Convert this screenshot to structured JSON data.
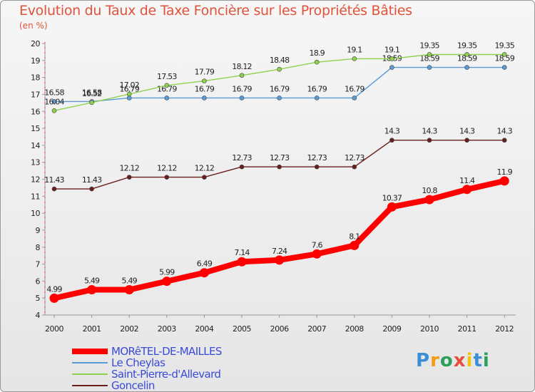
{
  "title": "Evolution du Taux de Taxe Foncière sur les Propriétés Bâties",
  "unit": "(en %)",
  "logo": {
    "text": "Proxiti",
    "letters": [
      {
        "ch": "P",
        "color": "#3a8fd6"
      },
      {
        "ch": "r",
        "color": "#f39c12"
      },
      {
        "ch": "o",
        "color": "#2ca05a"
      },
      {
        "ch": "x",
        "color": "#e74c3c"
      },
      {
        "ch": "i",
        "color": "#f1c40f"
      },
      {
        "ch": "t",
        "color": "#3a8fd6"
      },
      {
        "ch": "i",
        "color": "#2ca05a"
      }
    ]
  },
  "chart_data": {
    "type": "line",
    "x": [
      "2000",
      "2001",
      "2002",
      "2003",
      "2004",
      "2005",
      "2006",
      "2007",
      "2008",
      "2009",
      "2010",
      "2011",
      "2012"
    ],
    "ylim": [
      4,
      20
    ],
    "yticks": [
      4,
      5,
      6,
      7,
      8,
      9,
      10,
      11,
      12,
      13,
      14,
      15,
      16,
      17,
      18,
      19,
      20
    ],
    "grid": false,
    "legend_position": "bottom-left",
    "series": [
      {
        "name": "Goncelin",
        "color": "#6b1e1e",
        "labels": [
          "11.43",
          "11.43",
          "12.12",
          "12.12",
          "12.12",
          "12.73",
          "12.73",
          "12.73",
          "12.73",
          "14.3",
          "14.3",
          "14.3",
          "14.3"
        ],
        "values": [
          11.43,
          11.43,
          12.12,
          12.12,
          12.12,
          12.73,
          12.73,
          12.73,
          12.73,
          14.3,
          14.3,
          14.3,
          14.3
        ]
      },
      {
        "name": "Le Cheylas",
        "color": "#5b9bd5",
        "labels": [
          "16.58",
          "16.58",
          "16.79",
          "16.79",
          "16.79",
          "16.79",
          "16.79",
          "16.79",
          "16.79",
          "18.59",
          "18.59",
          "18.59",
          "18.59"
        ],
        "values": [
          16.58,
          16.58,
          16.79,
          16.79,
          16.79,
          16.79,
          16.79,
          16.79,
          16.79,
          18.59,
          18.59,
          18.59,
          18.59
        ]
      },
      {
        "name": "Saint-Pierre-d'Allevard",
        "color": "#8fd14f",
        "labels": [
          "16.04",
          "16.52",
          "17.02",
          "17.53",
          "17.79",
          "18.12",
          "18.48",
          "18.9",
          "19.1",
          "19.1",
          "19.35",
          "19.35",
          "19.35"
        ],
        "values": [
          16.04,
          16.52,
          17.02,
          17.53,
          17.79,
          18.12,
          18.48,
          18.9,
          19.1,
          19.1,
          19.35,
          19.35,
          19.35
        ]
      },
      {
        "name": "MORêTEL-DE-MAILLES",
        "color": "#ff0000",
        "labels": [
          "4.99",
          "5.49",
          "5.49",
          "5.99",
          "6.49",
          "7.14",
          "7.24",
          "7.6",
          "8.1",
          "10.37",
          "10.8",
          "11.4",
          "11.9"
        ],
        "values": [
          4.99,
          5.49,
          5.49,
          5.99,
          6.49,
          7.14,
          7.24,
          7.6,
          8.1,
          10.37,
          10.8,
          11.4,
          11.9
        ]
      }
    ],
    "legend_order": [
      "MORêTEL-DE-MAILLES",
      "Le Cheylas",
      "Saint-Pierre-d'Allevard",
      "Goncelin"
    ]
  }
}
